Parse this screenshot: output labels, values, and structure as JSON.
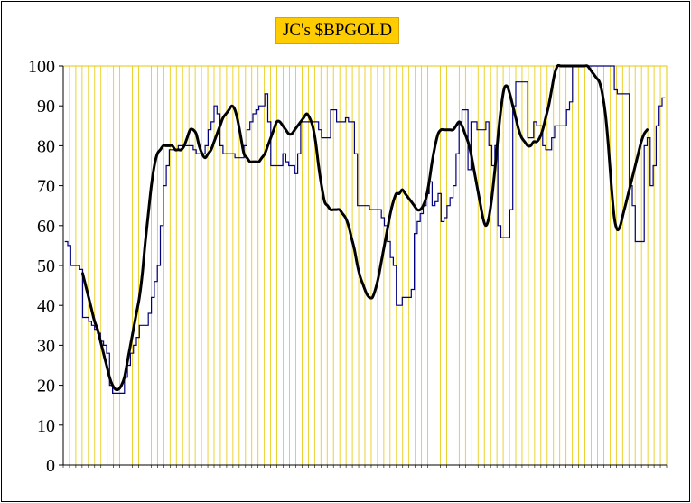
{
  "chart_data": {
    "type": "line",
    "title": "JC's $BPGOLD",
    "xlabel": "",
    "ylabel": "",
    "ylim": [
      0,
      100
    ],
    "y_ticks": [
      0,
      10,
      20,
      30,
      40,
      50,
      60,
      70,
      80,
      90,
      100
    ],
    "x_tick_labels_legible": false,
    "grid": {
      "vertical": true,
      "horizontal": false,
      "color": "#E6C800"
    },
    "series": [
      {
        "color": "#000080",
        "style": "thin-step",
        "values": [
          56,
          55,
          50,
          50,
          50,
          49,
          37,
          37,
          36,
          35,
          34,
          33,
          31,
          30,
          28,
          20,
          18,
          18,
          18,
          18,
          22,
          25,
          28,
          30,
          32,
          35,
          35,
          35,
          38,
          42,
          46,
          50,
          60,
          70,
          75,
          79,
          79,
          79,
          80,
          80,
          80,
          80,
          80,
          79,
          78,
          78,
          78,
          80,
          84,
          86,
          90,
          88,
          80,
          78,
          78,
          78,
          78,
          77,
          77,
          77,
          80,
          84,
          86,
          88,
          89,
          90,
          90,
          93,
          86,
          75,
          75,
          75,
          75,
          78,
          76,
          75,
          75,
          73,
          78,
          86,
          86,
          86,
          86,
          86,
          86,
          84,
          82,
          82,
          82,
          89,
          89,
          86,
          86,
          86,
          87,
          86,
          86,
          78,
          65,
          65,
          65,
          65,
          64,
          64,
          64,
          64,
          62,
          60,
          56,
          52,
          50,
          40,
          40,
          42,
          42,
          42,
          44,
          58,
          61,
          63,
          65,
          68,
          71,
          65,
          66,
          68,
          61,
          62,
          65,
          67,
          70,
          78,
          86,
          89,
          89,
          74,
          86,
          86,
          84,
          84,
          84,
          86,
          80,
          75,
          80,
          60,
          57,
          57,
          57,
          64,
          90,
          96,
          96,
          96,
          96,
          82,
          82,
          86,
          85,
          85,
          80,
          79,
          79,
          82,
          85,
          85,
          85,
          85,
          89,
          91,
          100,
          100,
          100,
          100,
          100,
          100,
          100,
          100,
          100,
          100,
          100,
          100,
          100,
          100,
          94,
          93,
          93,
          93,
          93,
          70,
          65,
          56,
          56,
          56,
          80,
          82,
          70,
          75,
          85,
          90,
          92,
          92
        ]
      },
      {
        "color": "#000000",
        "style": "thick-smooth",
        "start_index": 6,
        "values": [
          48,
          45,
          42,
          39,
          36,
          34,
          31,
          28,
          25,
          22,
          20,
          19,
          19,
          20,
          22,
          26,
          30,
          34,
          38,
          42,
          48,
          56,
          63,
          70,
          75,
          78,
          79,
          80,
          80,
          80,
          80,
          79,
          79,
          79,
          80,
          82,
          84,
          84,
          83,
          80,
          78,
          77,
          78,
          79,
          81,
          83,
          85,
          87,
          88,
          89,
          90,
          89,
          86,
          82,
          78,
          77,
          76,
          76,
          76,
          76,
          77,
          78,
          80,
          82,
          84,
          86,
          86,
          85,
          84,
          83,
          83,
          84,
          85,
          86,
          87,
          88,
          87,
          85,
          81,
          75,
          70,
          66,
          65,
          64,
          64,
          64,
          64,
          63,
          62,
          60,
          57,
          54,
          50,
          47,
          45,
          43,
          42,
          42,
          44,
          47,
          51,
          55,
          59,
          63,
          66,
          68,
          68,
          69,
          68,
          67,
          66,
          65,
          64,
          64,
          65,
          67,
          71,
          76,
          80,
          83,
          84,
          84,
          84,
          84,
          84,
          85,
          86,
          85,
          83,
          81,
          78,
          74,
          70,
          66,
          62,
          60,
          62,
          67,
          74,
          82,
          89,
          94,
          95,
          93,
          90,
          87,
          84,
          82,
          81,
          80,
          80,
          81,
          81,
          82,
          84,
          87,
          90,
          94,
          98,
          100,
          100,
          100,
          100,
          100,
          100,
          100,
          100,
          100,
          100,
          100,
          99,
          98,
          97,
          96,
          93,
          88,
          80,
          70,
          62,
          59,
          60,
          63,
          66,
          69,
          72,
          75,
          78,
          81,
          83,
          84
        ]
      }
    ]
  }
}
